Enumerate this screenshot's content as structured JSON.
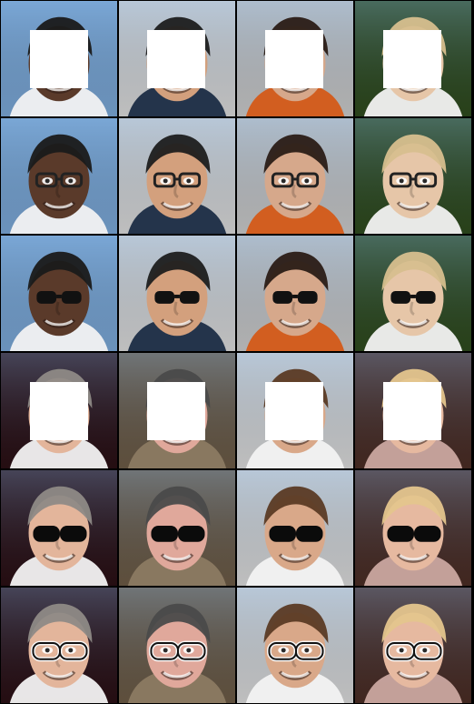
{
  "image": {
    "type": "face-inpainting-comparison-grid",
    "rows": 6,
    "columns": 4
  },
  "groups": [
    {
      "name": "top-group",
      "faces": [
        {
          "subject": "man-smiling-sea-background",
          "bg": "#7aa7d6",
          "skin": "#5a3a2a",
          "hair": "#1a1a1a",
          "shirt": "#f2f2f2"
        },
        {
          "subject": "man-glasses-trees-background",
          "bg": "#d9d9d9",
          "skin": "#d3a07d",
          "hair": "#1d1d1d",
          "shirt": "#1b2c44"
        },
        {
          "subject": "man-smiling-city-background",
          "bg": "#c9c9c9",
          "skin": "#d6a88b",
          "hair": "#2a1c16",
          "shirt": "#d45a18"
        },
        {
          "subject": "child-blonde-green-background",
          "bg": "#2e4a1d",
          "skin": "#e6c6a8",
          "hair": "#d7bf8e",
          "shirt": "#f2f2f2"
        }
      ],
      "rows": [
        {
          "row_name": "masked-input",
          "masked": true,
          "accessory": "none"
        },
        {
          "row_name": "generated-result",
          "masked": false,
          "accessory": "glasses-thin"
        },
        {
          "row_name": "ground-truth",
          "masked": false,
          "accessory": "glasses-dark"
        }
      ]
    },
    {
      "name": "bottom-group",
      "faces": [
        {
          "subject": "man-grey-hair-purple-background",
          "bg": "#2a0f14",
          "skin": "#e3b59b",
          "hair": "#8e8a86",
          "shirt": "#f2f2f2"
        },
        {
          "subject": "woman-beanie-hood",
          "bg": "#6b5a45",
          "skin": "#e0a89b",
          "hair": "#4a4a4a",
          "shirt": "#8b7a62"
        },
        {
          "subject": "woman-brown-hair-light-background",
          "bg": "#d9d9d9",
          "skin": "#d9a889",
          "hair": "#5b3a24",
          "shirt": "#f2f2f2"
        },
        {
          "subject": "woman-blonde-smiling",
          "bg": "#4a2c24",
          "skin": "#e6b9a0",
          "hair": "#e4c58d",
          "shirt": "#caa6a0"
        }
      ],
      "rows": [
        {
          "row_name": "masked-input",
          "masked": true,
          "accessory": "none"
        },
        {
          "row_name": "generated-result",
          "masked": false,
          "accessory": "sunglasses"
        },
        {
          "row_name": "ground-truth",
          "masked": false,
          "accessory": "glasses-white"
        }
      ]
    }
  ]
}
